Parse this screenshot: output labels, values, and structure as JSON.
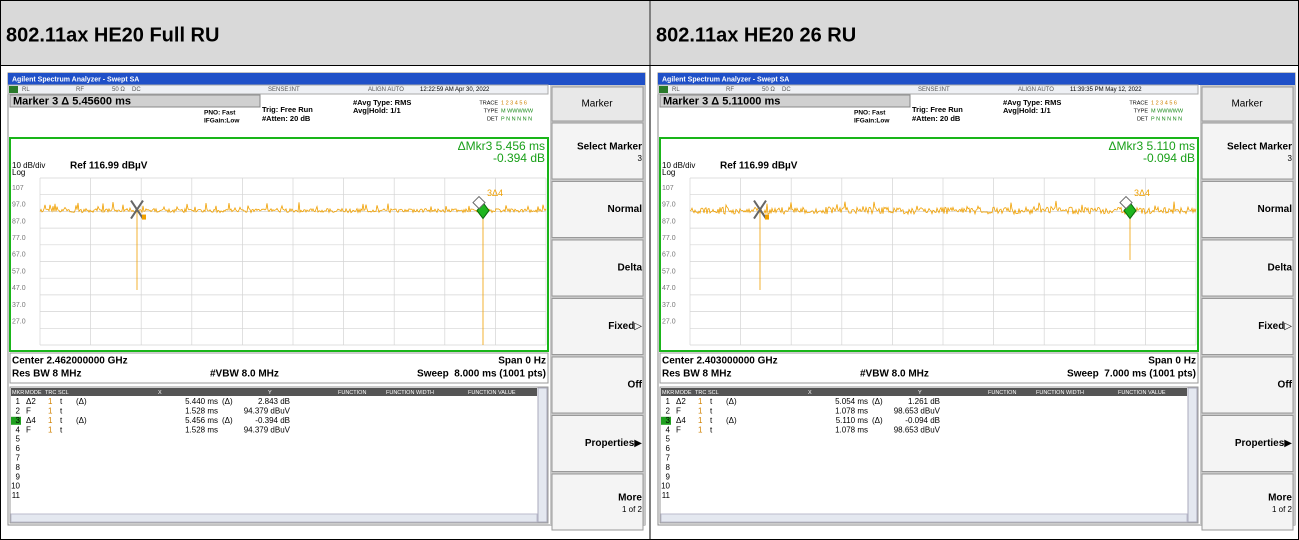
{
  "panels": [
    {
      "heading": "802.11ax HE20 Full RU",
      "title_bar": "Agilent Spectrum Analyzer - Swept SA",
      "status": [
        "RL",
        "RF",
        "50 Ω",
        "DC",
        "SENSE:INT",
        "ALIGN AUTO",
        "12:22:59 AM Apr 30, 2022"
      ],
      "marker_readout": "Marker 3 Δ 5.45600 ms",
      "settings": [
        "PNO: Fast",
        "IFGain:Low",
        "Trig: Free Run",
        "#Atten: 20 dB",
        "#Avg Type: RMS",
        "Avg|Hold: 1/1"
      ],
      "trace_info": [
        [
          "TRACE",
          "1 2 3 4 5 6"
        ],
        [
          "TYPE",
          "M WWWWW"
        ],
        [
          "DET",
          "P N N N N N"
        ]
      ],
      "delta_marker": [
        "ΔMkr3 5.456 ms",
        "-0.394 dB"
      ],
      "scale": "10 dB/div",
      "log": "Log",
      "ref": "Ref 116.99 dBµV",
      "y_labels": [
        "107",
        "97.0",
        "87.0",
        "77.0",
        "67.0",
        "57.0",
        "47.0",
        "37.0",
        "27.0"
      ],
      "graph_marker": "3Δ4",
      "footer": [
        "Center 2.462000000 GHz",
        "Span 0 Hz",
        "Res BW 8 MHz",
        "#VBW 8.0 MHz",
        "Sweep  8.000 ms (1001 pts)"
      ],
      "table_header": [
        "MKR",
        "MODE",
        "TRC",
        "SCL",
        "X",
        "Y",
        "FUNCTION",
        "FUNCTION WIDTH",
        "FUNCTION VALUE"
      ],
      "rows": [
        {
          "mkr": "1",
          "mode": "Δ2",
          "trc": "1",
          "scl": "t",
          "x_fn": "(Δ)",
          "x": "5.440 ms",
          "y_fn": "(Δ)",
          "y": "2.843 dB"
        },
        {
          "mkr": "2",
          "mode": "F",
          "trc": "1",
          "scl": "t",
          "x": "1.528 ms",
          "y": "94.379 dBuV"
        },
        {
          "mkr": "3",
          "mode": "Δ4",
          "trc": "1",
          "scl": "t",
          "x_fn": "(Δ)",
          "x": "5.456 ms",
          "y_fn": "(Δ)",
          "y": "-0.394 dB"
        },
        {
          "mkr": "4",
          "mode": "F",
          "trc": "1",
          "scl": "t",
          "x": "1.528 ms",
          "y": "94.379 dBuV"
        },
        {
          "mkr": "5"
        },
        {
          "mkr": "6"
        },
        {
          "mkr": "7"
        },
        {
          "mkr": "8"
        },
        {
          "mkr": "9"
        },
        {
          "mkr": "10"
        },
        {
          "mkr": "11"
        }
      ],
      "softkeys": [
        {
          "label": "Marker"
        },
        {
          "label": "Select Marker",
          "sub": "3"
        },
        {
          "label": "Normal"
        },
        {
          "label": "Delta"
        },
        {
          "label": "Fixed▷"
        },
        {
          "label": "Off"
        },
        {
          "label": "Properties▶"
        },
        {
          "label": "More",
          "sub": "1 of 2"
        }
      ]
    },
    {
      "heading": "802.11ax HE20 26 RU",
      "title_bar": "Agilent Spectrum Analyzer - Swept SA",
      "status": [
        "RL",
        "RF",
        "50 Ω",
        "DC",
        "SENSE:INT",
        "ALIGN AUTO",
        "11:39:35 PM May 12, 2022"
      ],
      "marker_readout": "Marker 3 Δ 5.11000 ms",
      "settings": [
        "PNO: Fast",
        "IFGain:Low",
        "Trig: Free Run",
        "#Atten: 20 dB",
        "#Avg Type: RMS",
        "Avg|Hold: 1/1"
      ],
      "trace_info": [
        [
          "TRACE",
          "1 2 3 4 5 6"
        ],
        [
          "TYPE",
          "M WWWWW"
        ],
        [
          "DET",
          "P N N N N N"
        ]
      ],
      "delta_marker": [
        "ΔMkr3 5.110 ms",
        "-0.094 dB"
      ],
      "scale": "10 dB/div",
      "log": "Log",
      "ref": "Ref 116.99 dBµV",
      "y_labels": [
        "107",
        "97.0",
        "87.0",
        "77.0",
        "67.0",
        "57.0",
        "47.0",
        "37.0",
        "27.0"
      ],
      "graph_marker": "3Δ4",
      "footer": [
        "Center 2.403000000 GHz",
        "Span 0 Hz",
        "Res BW 8 MHz",
        "#VBW 8.0 MHz",
        "Sweep  7.000 ms (1001 pts)"
      ],
      "table_header": [
        "MKR",
        "MODE",
        "TRC",
        "SCL",
        "X",
        "Y",
        "FUNCTION",
        "FUNCTION WIDTH",
        "FUNCTION VALUE"
      ],
      "rows": [
        {
          "mkr": "1",
          "mode": "Δ2",
          "trc": "1",
          "scl": "t",
          "x_fn": "(Δ)",
          "x": "5.054 ms",
          "y_fn": "(Δ)",
          "y": "1.261 dB"
        },
        {
          "mkr": "2",
          "mode": "F",
          "trc": "1",
          "scl": "t",
          "x": "1.078 ms",
          "y": "98.653 dBuV"
        },
        {
          "mkr": "3",
          "mode": "Δ4",
          "trc": "1",
          "scl": "t",
          "x_fn": "(Δ)",
          "x": "5.110 ms",
          "y_fn": "(Δ)",
          "y": "-0.094 dB"
        },
        {
          "mkr": "4",
          "mode": "F",
          "trc": "1",
          "scl": "t",
          "x": "1.078 ms",
          "y": "98.653 dBuV"
        },
        {
          "mkr": "5"
        },
        {
          "mkr": "6"
        },
        {
          "mkr": "7"
        },
        {
          "mkr": "8"
        },
        {
          "mkr": "9"
        },
        {
          "mkr": "10"
        },
        {
          "mkr": "11"
        }
      ],
      "softkeys": [
        {
          "label": "Marker"
        },
        {
          "label": "Select Marker",
          "sub": "3"
        },
        {
          "label": "Normal"
        },
        {
          "label": "Delta"
        },
        {
          "label": "Fixed▷"
        },
        {
          "label": "Off"
        },
        {
          "label": "Properties▶"
        },
        {
          "label": "More",
          "sub": "1 of 2"
        }
      ]
    }
  ]
}
